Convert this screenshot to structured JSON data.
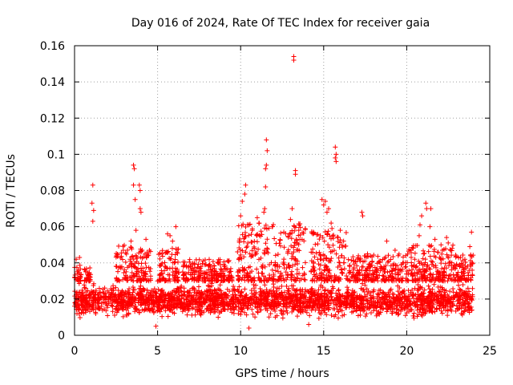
{
  "chart_data": {
    "type": "scatter",
    "title": "Day 016 of 2024, Rate Of TEC Index for receiver gaia",
    "xlabel": "GPS time / hours",
    "ylabel": "ROTI / TECUs",
    "xlim": [
      0,
      25
    ],
    "ylim": [
      0,
      0.16
    ],
    "xticks": [
      0,
      5,
      10,
      15,
      20,
      25
    ],
    "xtick_labels": [
      "0",
      "5",
      "10",
      "15",
      "20",
      "25"
    ],
    "yticks": [
      0,
      0.02,
      0.04,
      0.06,
      0.08,
      0.1,
      0.12,
      0.14,
      0.16
    ],
    "ytick_labels": [
      "0",
      "0.02",
      "0.04",
      "0.06",
      "0.08",
      "0.1",
      "0.12",
      "0.14",
      "0.16"
    ],
    "grid": true,
    "marker": "+",
    "color": "#ff0000",
    "baseline_band": [
      0.008,
      0.03
    ],
    "notable_points": [
      {
        "x": 0.1,
        "y": 0.042
      },
      {
        "x": 0.3,
        "y": 0.043
      },
      {
        "x": 1.1,
        "y": 0.083
      },
      {
        "x": 1.05,
        "y": 0.073
      },
      {
        "x": 1.15,
        "y": 0.069
      },
      {
        "x": 1.1,
        "y": 0.063
      },
      {
        "x": 3.55,
        "y": 0.094
      },
      {
        "x": 3.6,
        "y": 0.092
      },
      {
        "x": 3.55,
        "y": 0.083
      },
      {
        "x": 3.65,
        "y": 0.075
      },
      {
        "x": 3.9,
        "y": 0.083
      },
      {
        "x": 3.95,
        "y": 0.08
      },
      {
        "x": 3.95,
        "y": 0.07
      },
      {
        "x": 4.0,
        "y": 0.068
      },
      {
        "x": 3.4,
        "y": 0.052
      },
      {
        "x": 3.7,
        "y": 0.058
      },
      {
        "x": 4.3,
        "y": 0.053
      },
      {
        "x": 5.6,
        "y": 0.056
      },
      {
        "x": 5.75,
        "y": 0.055
      },
      {
        "x": 6.1,
        "y": 0.06
      },
      {
        "x": 5.9,
        "y": 0.052
      },
      {
        "x": 10.3,
        "y": 0.083
      },
      {
        "x": 10.25,
        "y": 0.078
      },
      {
        "x": 10.1,
        "y": 0.074
      },
      {
        "x": 10.0,
        "y": 0.066
      },
      {
        "x": 10.5,
        "y": 0.061
      },
      {
        "x": 10.7,
        "y": 0.058
      },
      {
        "x": 11.0,
        "y": 0.065
      },
      {
        "x": 11.55,
        "y": 0.108
      },
      {
        "x": 11.6,
        "y": 0.102
      },
      {
        "x": 11.55,
        "y": 0.094
      },
      {
        "x": 11.5,
        "y": 0.092
      },
      {
        "x": 11.5,
        "y": 0.082
      },
      {
        "x": 11.45,
        "y": 0.07
      },
      {
        "x": 11.4,
        "y": 0.068
      },
      {
        "x": 11.9,
        "y": 0.06
      },
      {
        "x": 13.2,
        "y": 0.154
      },
      {
        "x": 13.2,
        "y": 0.152
      },
      {
        "x": 13.3,
        "y": 0.091
      },
      {
        "x": 13.3,
        "y": 0.089
      },
      {
        "x": 13.1,
        "y": 0.07
      },
      {
        "x": 13.0,
        "y": 0.064
      },
      {
        "x": 12.6,
        "y": 0.057
      },
      {
        "x": 13.5,
        "y": 0.058
      },
      {
        "x": 14.9,
        "y": 0.075
      },
      {
        "x": 15.0,
        "y": 0.072
      },
      {
        "x": 15.1,
        "y": 0.074
      },
      {
        "x": 15.2,
        "y": 0.068
      },
      {
        "x": 15.3,
        "y": 0.07
      },
      {
        "x": 15.5,
        "y": 0.059
      },
      {
        "x": 15.45,
        "y": 0.062
      },
      {
        "x": 14.8,
        "y": 0.055
      },
      {
        "x": 15.7,
        "y": 0.104
      },
      {
        "x": 15.75,
        "y": 0.1
      },
      {
        "x": 15.7,
        "y": 0.098
      },
      {
        "x": 15.75,
        "y": 0.096
      },
      {
        "x": 16.0,
        "y": 0.058
      },
      {
        "x": 16.2,
        "y": 0.052
      },
      {
        "x": 17.3,
        "y": 0.068
      },
      {
        "x": 17.35,
        "y": 0.066
      },
      {
        "x": 18.8,
        "y": 0.052
      },
      {
        "x": 19.3,
        "y": 0.047
      },
      {
        "x": 21.15,
        "y": 0.073
      },
      {
        "x": 21.2,
        "y": 0.07
      },
      {
        "x": 21.45,
        "y": 0.07
      },
      {
        "x": 20.9,
        "y": 0.066
      },
      {
        "x": 20.8,
        "y": 0.061
      },
      {
        "x": 20.75,
        "y": 0.055
      },
      {
        "x": 21.4,
        "y": 0.06
      },
      {
        "x": 21.7,
        "y": 0.053
      },
      {
        "x": 22.4,
        "y": 0.054
      },
      {
        "x": 22.5,
        "y": 0.051
      },
      {
        "x": 23.9,
        "y": 0.057
      },
      {
        "x": 23.8,
        "y": 0.049
      },
      {
        "x": 23.5,
        "y": 0.042
      },
      {
        "x": 10.5,
        "y": 0.004
      },
      {
        "x": 4.9,
        "y": 0.005
      },
      {
        "x": 14.1,
        "y": 0.006
      }
    ],
    "bursts": [
      {
        "x0": 0.0,
        "x1": 0.4,
        "top": 0.04
      },
      {
        "x0": 0.6,
        "x1": 1.0,
        "top": 0.038
      },
      {
        "x0": 2.5,
        "x1": 4.6,
        "top": 0.05
      },
      {
        "x0": 5.0,
        "x1": 6.3,
        "top": 0.048
      },
      {
        "x0": 6.5,
        "x1": 9.5,
        "top": 0.042
      },
      {
        "x0": 9.8,
        "x1": 13.9,
        "top": 0.062
      },
      {
        "x0": 14.2,
        "x1": 16.4,
        "top": 0.058
      },
      {
        "x0": 16.4,
        "x1": 19.8,
        "top": 0.045
      },
      {
        "x0": 19.9,
        "x1": 22.8,
        "top": 0.05
      },
      {
        "x0": 22.8,
        "x1": 24.0,
        "top": 0.045
      }
    ]
  }
}
